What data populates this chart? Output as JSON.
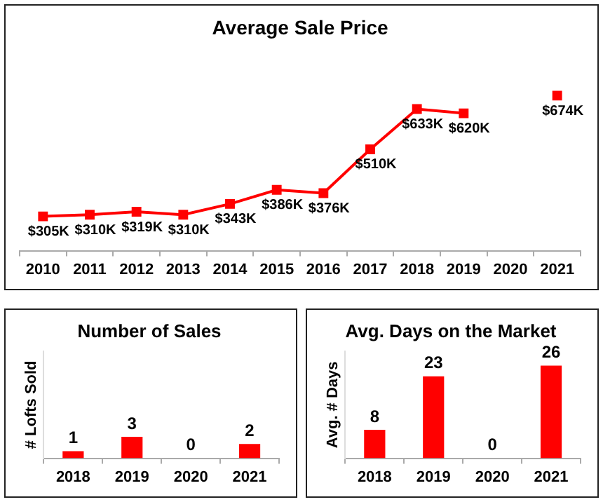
{
  "chart_data": [
    {
      "type": "line",
      "title": "Average Sale Price",
      "categories": [
        "2010",
        "2011",
        "2012",
        "2013",
        "2014",
        "2015",
        "2016",
        "2017",
        "2018",
        "2019",
        "2020",
        "2021"
      ],
      "series": [
        {
          "color": "#ff0000",
          "values": [
            305,
            310,
            319,
            310,
            343,
            386,
            376,
            510,
            633,
            620,
            null,
            674
          ],
          "value_labels": [
            "$305K",
            "$310K",
            "$319K",
            "$310K",
            "$343K",
            "$386K",
            "$376K",
            "$510K",
            "$633K",
            "$620K",
            null,
            "$674K"
          ]
        }
      ],
      "marker": "square",
      "tick_labels": "x",
      "grid": false
    },
    {
      "type": "bar",
      "title": "Number of Sales",
      "ylabel": "# Lofts Sold",
      "categories": [
        "2018",
        "2019",
        "2020",
        "2021"
      ],
      "series": [
        {
          "color": "#ff0000",
          "values": [
            1,
            3,
            0,
            2
          ]
        }
      ],
      "data_labels": true,
      "tick_labels": "x",
      "grid": false
    },
    {
      "type": "bar",
      "title": "Avg. Days on the Market",
      "ylabel": "Avg. # Days",
      "categories": [
        "2018",
        "2019",
        "2020",
        "2021"
      ],
      "series": [
        {
          "color": "#ff0000",
          "values": [
            8,
            23,
            0,
            26
          ]
        }
      ],
      "data_labels": true,
      "tick_labels": "x",
      "grid": false
    }
  ]
}
